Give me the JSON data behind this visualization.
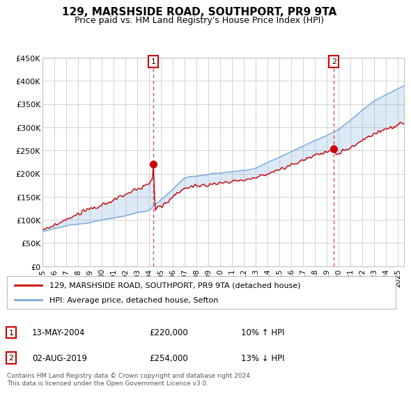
{
  "title": "129, MARSHSIDE ROAD, SOUTHPORT, PR9 9TA",
  "subtitle": "Price paid vs. HM Land Registry's House Price Index (HPI)",
  "red_line_color": "#cc0000",
  "blue_line_color": "#7aaadd",
  "fill_color": "#ddeeff",
  "sale1_price": 220000,
  "sale2_price": 254000,
  "sale1_year": 2004.36,
  "sale2_year": 2019.58,
  "sale1_label": "13-MAY-2004",
  "sale2_label": "02-AUG-2019",
  "legend_line1": "129, MARSHSIDE ROAD, SOUTHPORT, PR9 9TA (detached house)",
  "legend_line2": "HPI: Average price, detached house, Sefton",
  "footer": "Contains HM Land Registry data © Crown copyright and database right 2024.\nThis data is licensed under the Open Government Licence v3.0.",
  "background_color": "#ffffff",
  "grid_color": "#cccccc",
  "ylim": [
    0,
    450000
  ],
  "yticks": [
    0,
    50000,
    100000,
    150000,
    200000,
    250000,
    300000,
    350000,
    400000,
    450000
  ],
  "ytick_labels": [
    "£0",
    "£50K",
    "£100K",
    "£150K",
    "£200K",
    "£250K",
    "£300K",
    "£350K",
    "£400K",
    "£450K"
  ],
  "xlim_start": 1995,
  "xlim_end": 2025.5
}
